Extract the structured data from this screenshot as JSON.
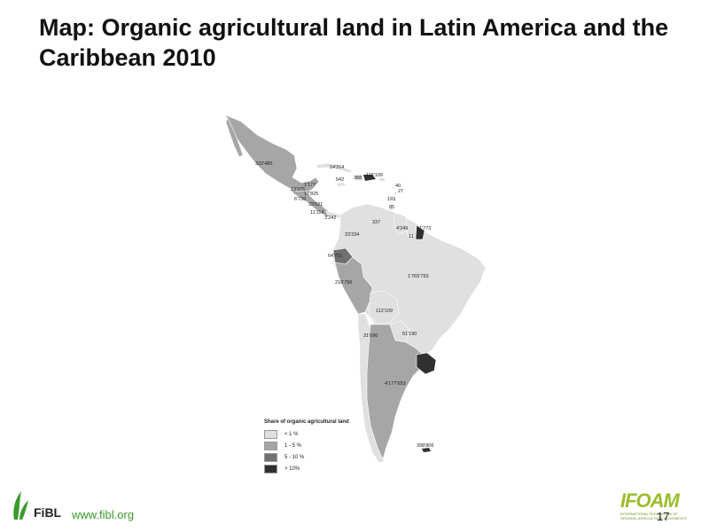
{
  "title": "Map: Organic agricultural land in Latin America and the Caribbean 2010",
  "map": {
    "labels": [
      {
        "id": "mexico",
        "text": "332'485"
      },
      {
        "id": "cuba",
        "text": "14'314"
      },
      {
        "id": "jamaica",
        "text": "542"
      },
      {
        "id": "dominican-republic",
        "text": "388"
      },
      {
        "id": "puerto-rico",
        "text": "115'109"
      },
      {
        "id": "lesser-antilles-1",
        "text": "40"
      },
      {
        "id": "lesser-antilles-2",
        "text": "27"
      },
      {
        "id": "lesser-antilles-3",
        "text": "193"
      },
      {
        "id": "trinidad",
        "text": "85"
      },
      {
        "id": "belize",
        "text": "1'177"
      },
      {
        "id": "guatemala",
        "text": "13'375"
      },
      {
        "id": "honduras",
        "text": "17'825"
      },
      {
        "id": "el-salvador",
        "text": "6'736"
      },
      {
        "id": "nicaragua",
        "text": "33'621"
      },
      {
        "id": "costa-rica",
        "text": "11'114"
      },
      {
        "id": "panama",
        "text": "3'242"
      },
      {
        "id": "venezuela",
        "text": "337"
      },
      {
        "id": "colombia",
        "text": "33'334"
      },
      {
        "id": "guyana",
        "text": "4'249"
      },
      {
        "id": "suriname",
        "text": "11"
      },
      {
        "id": "french-guiana",
        "text": "1'773"
      },
      {
        "id": "ecuador",
        "text": "64'751"
      },
      {
        "id": "peru",
        "text": "216'796"
      },
      {
        "id": "brazil",
        "text": "1'765'793"
      },
      {
        "id": "bolivia",
        "text": "112'109"
      },
      {
        "id": "chile",
        "text": "31'696"
      },
      {
        "id": "paraguay",
        "text": "51'190"
      },
      {
        "id": "argentina",
        "text": "4'177'653"
      },
      {
        "id": "falklands",
        "text": "398'806"
      }
    ],
    "colors": {
      "lt1": "#e0e0e0",
      "c1to5": "#a6a6a6",
      "c5to10": "#707070",
      "gt10": "#303030",
      "border": "#ffffff"
    }
  },
  "legend": {
    "title": "Share of organic agricultural land",
    "items": [
      {
        "label": "< 1 %",
        "color": "#e0e0e0"
      },
      {
        "label": "1 - 5 %",
        "color": "#a6a6a6"
      },
      {
        "label": "5 - 10 %",
        "color": "#707070"
      },
      {
        "label": "> 10%",
        "color": "#303030"
      }
    ]
  },
  "footer": {
    "org": "FiBL",
    "url": "www.fibl.org",
    "page": "17",
    "ifoam_main": "IFOAM",
    "ifoam_sub": "INTERNATIONAL FEDERATION OF ORGANIC AGRICULTURE MOVEMENTS"
  }
}
